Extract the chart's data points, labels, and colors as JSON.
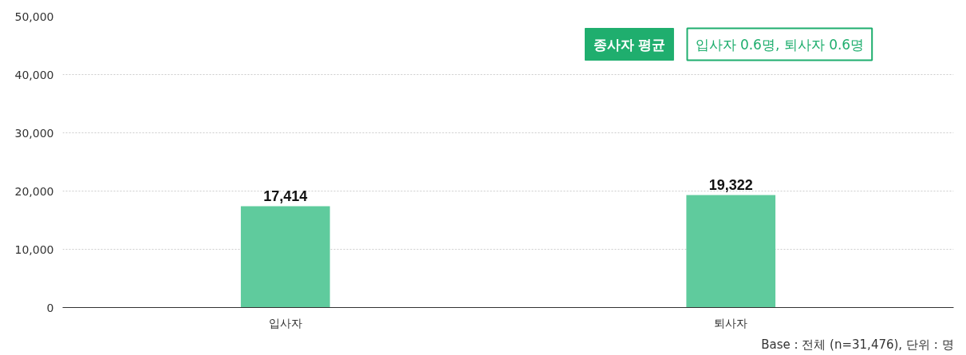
{
  "chart_data": {
    "type": "bar",
    "categories": [
      "입사자",
      "퇴사자"
    ],
    "values": [
      17414,
      19322
    ],
    "color": "#5fcb9d",
    "ylim": [
      0,
      50000
    ],
    "yticks": [
      {
        "value": 0,
        "label": "0"
      },
      {
        "value": 10000,
        "label": "10,000"
      },
      {
        "value": 20000,
        "label": "20,000"
      },
      {
        "value": 30000,
        "label": "30,000"
      },
      {
        "value": 40000,
        "label": "40,000"
      },
      {
        "value": 50000,
        "label": "50,000"
      }
    ],
    "grid": "y",
    "value_labels": [
      "17,414",
      "19,322"
    ],
    "annotations": [
      "종사자 평균",
      "입사자 0.6명, 퇴사자 0.6명",
      "Base : 전체 (n=31,476), 단위 : 명"
    ]
  }
}
